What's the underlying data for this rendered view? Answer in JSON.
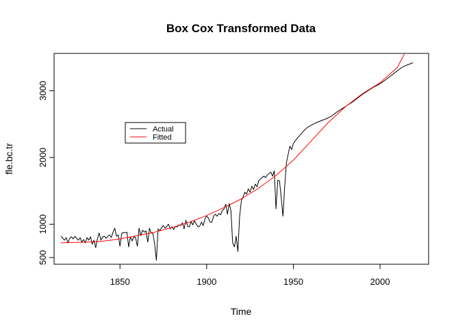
{
  "chart_data": {
    "type": "line",
    "title": "Box Cox Transformed Data",
    "xlabel": "Time",
    "ylabel": "fle.bc.tr",
    "xlim": [
      1812,
      2028
    ],
    "ylim": [
      400,
      3560
    ],
    "xticks": [
      1850,
      1900,
      1950,
      2000
    ],
    "yticks": [
      500,
      1000,
      2000,
      3000
    ],
    "xtick_labels": [
      "1850",
      "1900",
      "1950",
      "2000"
    ],
    "ytick_labels": [
      "500",
      "1000",
      "2000",
      "3000"
    ],
    "grid": false,
    "legend": {
      "position": "upper-left",
      "entries": [
        {
          "label": "Actual",
          "color": "#000000"
        },
        {
          "label": "Fitted",
          "color": "#ff0000"
        }
      ]
    },
    "series": [
      {
        "name": "Actual",
        "color": "#000000",
        "points": [
          [
            1816,
            820
          ],
          [
            1817,
            790
          ],
          [
            1818,
            760
          ],
          [
            1819,
            800
          ],
          [
            1820,
            720
          ],
          [
            1821,
            790
          ],
          [
            1822,
            810
          ],
          [
            1823,
            780
          ],
          [
            1824,
            820
          ],
          [
            1825,
            790
          ],
          [
            1826,
            760
          ],
          [
            1827,
            800
          ],
          [
            1828,
            730
          ],
          [
            1829,
            770
          ],
          [
            1830,
            720
          ],
          [
            1831,
            800
          ],
          [
            1832,
            760
          ],
          [
            1833,
            810
          ],
          [
            1834,
            700
          ],
          [
            1835,
            760
          ],
          [
            1836,
            650
          ],
          [
            1837,
            780
          ],
          [
            1838,
            870
          ],
          [
            1839,
            760
          ],
          [
            1840,
            810
          ],
          [
            1841,
            820
          ],
          [
            1842,
            790
          ],
          [
            1843,
            820
          ],
          [
            1844,
            840
          ],
          [
            1845,
            800
          ],
          [
            1846,
            880
          ],
          [
            1847,
            940
          ],
          [
            1848,
            820
          ],
          [
            1849,
            840
          ],
          [
            1850,
            670
          ],
          [
            1851,
            860
          ],
          [
            1852,
            880
          ],
          [
            1853,
            870
          ],
          [
            1854,
            880
          ],
          [
            1855,
            660
          ],
          [
            1856,
            810
          ],
          [
            1857,
            750
          ],
          [
            1858,
            810
          ],
          [
            1859,
            800
          ],
          [
            1860,
            670
          ],
          [
            1861,
            940
          ],
          [
            1862,
            830
          ],
          [
            1863,
            910
          ],
          [
            1864,
            880
          ],
          [
            1865,
            900
          ],
          [
            1866,
            730
          ],
          [
            1867,
            940
          ],
          [
            1868,
            870
          ],
          [
            1869,
            860
          ],
          [
            1870,
            700
          ],
          [
            1871,
            460
          ],
          [
            1872,
            930
          ],
          [
            1873,
            900
          ],
          [
            1874,
            950
          ],
          [
            1875,
            980
          ],
          [
            1876,
            940
          ],
          [
            1877,
            970
          ],
          [
            1878,
            1000
          ],
          [
            1879,
            930
          ],
          [
            1880,
            960
          ],
          [
            1881,
            920
          ],
          [
            1882,
            970
          ],
          [
            1883,
            960
          ],
          [
            1884,
            990
          ],
          [
            1885,
            980
          ],
          [
            1886,
            1020
          ],
          [
            1887,
            930
          ],
          [
            1888,
            1060
          ],
          [
            1889,
            970
          ],
          [
            1890,
            960
          ],
          [
            1891,
            1040
          ],
          [
            1892,
            990
          ],
          [
            1893,
            1050
          ],
          [
            1894,
            1000
          ],
          [
            1895,
            960
          ],
          [
            1896,
            970
          ],
          [
            1897,
            1030
          ],
          [
            1898,
            980
          ],
          [
            1899,
            1080
          ],
          [
            1900,
            1120
          ],
          [
            1901,
            1090
          ],
          [
            1902,
            1030
          ],
          [
            1903,
            1030
          ],
          [
            1904,
            1120
          ],
          [
            1905,
            1150
          ],
          [
            1906,
            1120
          ],
          [
            1907,
            1160
          ],
          [
            1908,
            1140
          ],
          [
            1909,
            1200
          ],
          [
            1910,
            1230
          ],
          [
            1911,
            1300
          ],
          [
            1912,
            1150
          ],
          [
            1913,
            1310
          ],
          [
            1914,
            1200
          ],
          [
            1915,
            720
          ],
          [
            1916,
            660
          ],
          [
            1917,
            820
          ],
          [
            1918,
            590
          ],
          [
            1919,
            1120
          ],
          [
            1920,
            1350
          ],
          [
            1921,
            1410
          ],
          [
            1922,
            1480
          ],
          [
            1923,
            1450
          ],
          [
            1924,
            1530
          ],
          [
            1925,
            1480
          ],
          [
            1926,
            1570
          ],
          [
            1927,
            1520
          ],
          [
            1928,
            1600
          ],
          [
            1929,
            1560
          ],
          [
            1930,
            1650
          ],
          [
            1931,
            1680
          ],
          [
            1932,
            1700
          ],
          [
            1933,
            1720
          ],
          [
            1934,
            1700
          ],
          [
            1935,
            1740
          ],
          [
            1936,
            1760
          ],
          [
            1937,
            1780
          ],
          [
            1938,
            1720
          ],
          [
            1939,
            1800
          ],
          [
            1940,
            1230
          ],
          [
            1941,
            1660
          ],
          [
            1942,
            1650
          ],
          [
            1943,
            1400
          ],
          [
            1944,
            1120
          ],
          [
            1945,
            1560
          ],
          [
            1946,
            1920
          ],
          [
            1947,
            2050
          ],
          [
            1948,
            2170
          ],
          [
            1949,
            2120
          ],
          [
            1950,
            2210
          ],
          [
            1952,
            2280
          ],
          [
            1954,
            2340
          ],
          [
            1956,
            2400
          ],
          [
            1958,
            2450
          ],
          [
            1960,
            2480
          ],
          [
            1963,
            2520
          ],
          [
            1966,
            2550
          ],
          [
            1969,
            2580
          ],
          [
            1972,
            2620
          ],
          [
            1975,
            2680
          ],
          [
            1978,
            2730
          ],
          [
            1981,
            2780
          ],
          [
            1984,
            2830
          ],
          [
            1987,
            2890
          ],
          [
            1990,
            2950
          ],
          [
            1993,
            3000
          ],
          [
            1996,
            3050
          ],
          [
            1999,
            3090
          ],
          [
            2002,
            3140
          ],
          [
            2005,
            3200
          ],
          [
            2008,
            3260
          ],
          [
            2011,
            3320
          ],
          [
            2014,
            3370
          ],
          [
            2017,
            3400
          ],
          [
            2019,
            3420
          ]
        ]
      },
      {
        "name": "Fitted",
        "color": "#ff0000",
        "points": [
          [
            1816,
            720
          ],
          [
            1830,
            730
          ],
          [
            1840,
            745
          ],
          [
            1850,
            780
          ],
          [
            1860,
            830
          ],
          [
            1870,
            880
          ],
          [
            1880,
            950
          ],
          [
            1890,
            1030
          ],
          [
            1900,
            1130
          ],
          [
            1910,
            1250
          ],
          [
            1920,
            1380
          ],
          [
            1930,
            1540
          ],
          [
            1940,
            1730
          ],
          [
            1950,
            1960
          ],
          [
            1960,
            2240
          ],
          [
            1970,
            2520
          ],
          [
            1980,
            2760
          ],
          [
            1990,
            2960
          ],
          [
            2000,
            3120
          ],
          [
            2010,
            3350
          ],
          [
            2014,
            3550
          ]
        ]
      }
    ]
  }
}
